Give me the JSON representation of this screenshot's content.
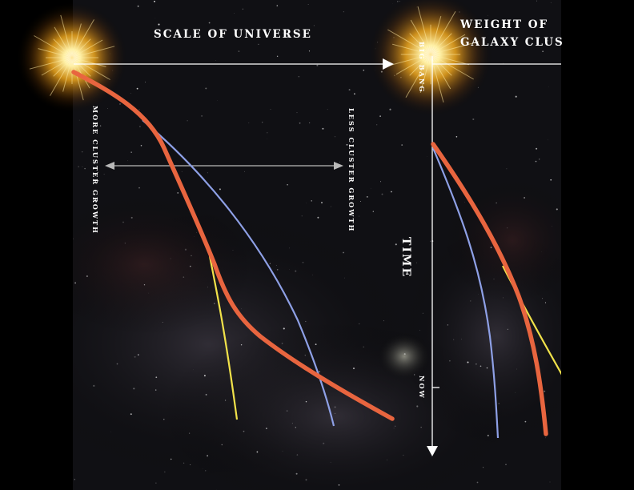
{
  "left_panel": {
    "title": "SCALE OF UNIVERSE",
    "more_label": "MORE CLUSTER GROWTH",
    "less_label": "LESS CLUSTER GROWTH"
  },
  "right_panel": {
    "title_line1": "WEIGHT OF",
    "title_line2": "GALAXY CLUS",
    "big_bang_label": "BIG BANG",
    "time_label": "TIME",
    "now_label": "NOW"
  },
  "colors": {
    "background": "#000000",
    "space_dark": "#101014",
    "curve_orange": "#e8653f",
    "curve_blue": "#8ea0e6",
    "curve_yellow": "#f1e24a",
    "axis": "#ffffff",
    "growth_arrow": "#b9b9b9",
    "starburst": "#ffd24d"
  }
}
